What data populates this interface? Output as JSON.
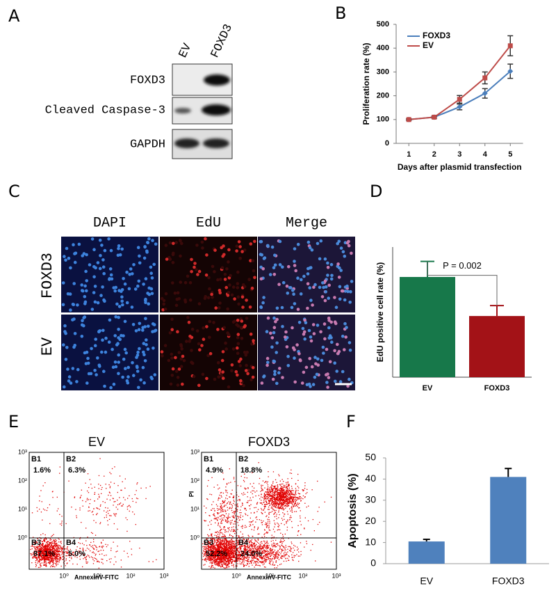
{
  "panels": {
    "a": {
      "label": "A",
      "columns": [
        "EV",
        "FOXD3"
      ],
      "rows": [
        "FOXD3",
        "Cleaved Caspase-3",
        "GAPDH"
      ]
    },
    "b": {
      "label": "B"
    },
    "c": {
      "label": "C",
      "columns": [
        "DAPI",
        "EdU",
        "Merge"
      ],
      "rows": [
        "FOXD3",
        "EV"
      ]
    },
    "d": {
      "label": "D"
    },
    "e": {
      "label": "E",
      "xlabel": "AnnexinV-FITC",
      "ylabel": "PI",
      "ticks": [
        "10⁰",
        "10¹",
        "10²",
        "10³"
      ],
      "plots": [
        {
          "title": "EV",
          "quadrants": [
            {
              "name": "B1",
              "percent": "1.6%"
            },
            {
              "name": "B2",
              "percent": "6.3%"
            },
            {
              "name": "B3",
              "percent": "87.1%"
            },
            {
              "name": "B4",
              "percent": "5.0%"
            }
          ]
        },
        {
          "title": "FOXD3",
          "quadrants": [
            {
              "name": "B1",
              "percent": "4.9%"
            },
            {
              "name": "B2",
              "percent": "18.8%"
            },
            {
              "name": "B3",
              "percent": "52.2%"
            },
            {
              "name": "B4",
              "percent": "24.0%"
            }
          ]
        }
      ]
    },
    "f": {
      "label": "F"
    }
  },
  "chart_data": [
    {
      "type": "line",
      "xlabel": "Days after plasmid transfection",
      "ylabel": "Proliferation rate (%)",
      "categories": [
        "1",
        "2",
        "3",
        "4",
        "5"
      ],
      "series": [
        {
          "name": "FOXD3",
          "color": "#4a7ebb",
          "values": [
            100,
            110,
            153,
            210,
            303
          ],
          "errors": [
            3,
            4,
            12,
            20,
            30
          ]
        },
        {
          "name": "EV",
          "color": "#be4b48",
          "values": [
            100,
            110,
            185,
            275,
            410
          ],
          "errors": [
            3,
            4,
            16,
            25,
            42
          ]
        }
      ],
      "ylim": [
        0,
        500
      ],
      "yticks": [
        0,
        100,
        200,
        300,
        400,
        500
      ],
      "legend": "upper left"
    },
    {
      "type": "bar",
      "ylabel": "EdU positive cell rate (%)",
      "categories": [
        "EV",
        "FOXD3"
      ],
      "values": [
        38.5,
        23.5
      ],
      "errors": [
        6,
        4
      ],
      "colors": [
        "#17784a",
        "#a31217"
      ],
      "ylim": [
        0,
        50
      ],
      "annotation": "P = 0.002"
    },
    {
      "type": "bar",
      "ylabel": "Apoptosis (%)",
      "categories": [
        "EV",
        "FOXD3"
      ],
      "values": [
        10.5,
        41
      ],
      "errors": [
        1,
        4
      ],
      "colors": [
        "#4f81bd",
        "#4f81bd"
      ],
      "ylim": [
        0,
        50
      ],
      "yticks": [
        0,
        10,
        20,
        30,
        40,
        50
      ]
    }
  ]
}
